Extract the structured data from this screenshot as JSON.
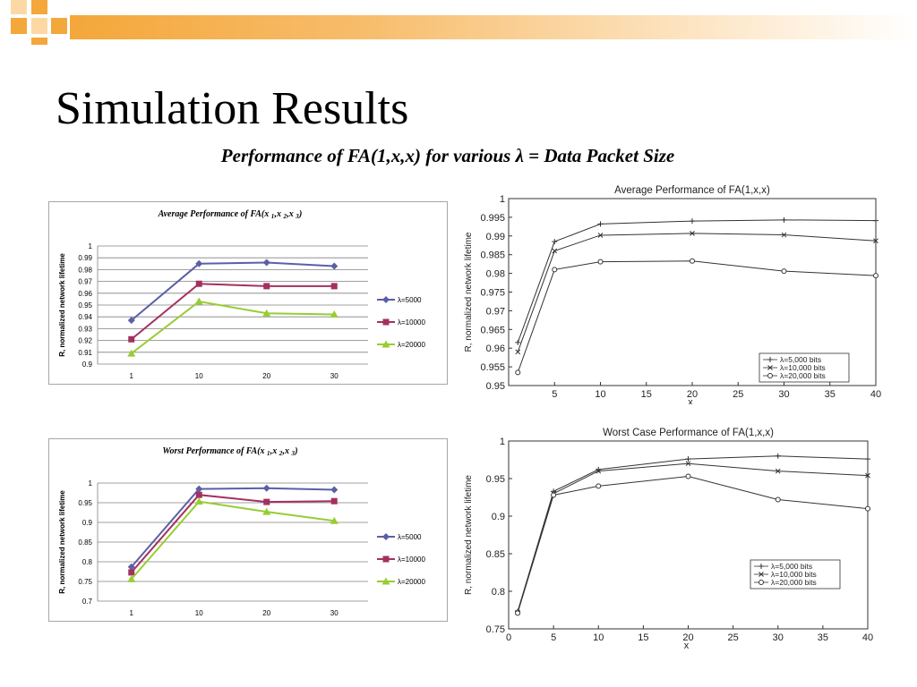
{
  "slide": {
    "title": "Simulation Results",
    "subtitle": "Performance of FA(1,x,x) for various λ = Data Packet Size"
  },
  "colors": {
    "header_orange": "#f4a73a",
    "header_light": "#fcd9a4",
    "series_blue": "#5b5fa6",
    "series_purple": "#a3315f",
    "series_green": "#99cc33",
    "paper_line": "#333333"
  },
  "chart_data": [
    {
      "id": "excel-average",
      "type": "line",
      "title": "Average Performance of FA(x 1,x 2,x 3)",
      "title_parts": {
        "pre": "Average Performance of FA(x ",
        "s1": "1",
        "mid1": ",x ",
        "s2": "2",
        "mid2": ",x ",
        "s3": "3",
        "post": ")"
      },
      "xlabel": "",
      "ylabel": "R, normalized network lifetime",
      "categories": [
        "1",
        "10",
        "20",
        "30"
      ],
      "y_ticks": [
        "1",
        "0.99",
        "0.98",
        "0.97",
        "0.96",
        "0.95",
        "0.94",
        "0.93",
        "0.92",
        "0.91",
        "0.9"
      ],
      "ylim": [
        0.9,
        1.0
      ],
      "grid": true,
      "legend_position": "right",
      "series": [
        {
          "name": "λ=5000",
          "marker": "diamond",
          "color": "#5b5fa6",
          "values": [
            0.937,
            0.985,
            0.986,
            0.983
          ]
        },
        {
          "name": "λ=10000",
          "marker": "square",
          "color": "#a3315f",
          "values": [
            0.921,
            0.968,
            0.966,
            0.966
          ]
        },
        {
          "name": "λ=20000",
          "marker": "triangle",
          "color": "#99cc33",
          "values": [
            0.909,
            0.953,
            0.943,
            0.942
          ]
        }
      ]
    },
    {
      "id": "excel-worst",
      "type": "line",
      "title": "Worst Performance of FA(x 1,x 2,x 3)",
      "title_parts": {
        "pre": "Worst Performance of FA(x ",
        "s1": "1",
        "mid1": ",x ",
        "s2": "2",
        "mid2": ",x ",
        "s3": "3",
        "post": ")"
      },
      "xlabel": "",
      "ylabel": "R, normalized network lifetime",
      "categories": [
        "1",
        "10",
        "20",
        "30"
      ],
      "y_ticks": [
        "1",
        "0.95",
        "0.9",
        "0.85",
        "0.8",
        "0.75",
        "0.7"
      ],
      "ylim": [
        0.7,
        1.0
      ],
      "grid": true,
      "legend_position": "right",
      "series": [
        {
          "name": "λ=5000",
          "marker": "diamond",
          "color": "#5b5fa6",
          "values": [
            0.787,
            0.985,
            0.987,
            0.983
          ]
        },
        {
          "name": "λ=10000",
          "marker": "square",
          "color": "#a3315f",
          "values": [
            0.773,
            0.97,
            0.952,
            0.954
          ]
        },
        {
          "name": "λ=20000",
          "marker": "triangle",
          "color": "#99cc33",
          "values": [
            0.756,
            0.953,
            0.927,
            0.904
          ]
        }
      ]
    },
    {
      "id": "paper-average",
      "type": "line",
      "title": "Average Performance of FA(1,x,x)",
      "xlabel": "x",
      "ylabel": "R, normalized network lifetime",
      "x_ticks": [
        "5",
        "10",
        "15",
        "20",
        "25",
        "30",
        "35",
        "40"
      ],
      "y_ticks": [
        "1",
        "0.995",
        "0.99",
        "0.985",
        "0.98",
        "0.975",
        "0.97",
        "0.965",
        "0.96",
        "0.955",
        "0.95"
      ],
      "xlim": [
        0,
        40
      ],
      "ylim": [
        0.95,
        1.0
      ],
      "grid": false,
      "legend_position": "bottom-right",
      "series": [
        {
          "name": "λ=5,000 bits",
          "marker": "plus",
          "x": [
            1,
            5,
            10,
            20,
            30,
            40
          ],
          "values": [
            0.9615,
            0.9885,
            0.9932,
            0.994,
            0.9943,
            0.9941
          ]
        },
        {
          "name": "λ=10,000 bits",
          "marker": "cross",
          "x": [
            1,
            5,
            10,
            20,
            30,
            40
          ],
          "values": [
            0.959,
            0.986,
            0.9902,
            0.9907,
            0.9903,
            0.9887
          ]
        },
        {
          "name": "λ=20,000 bits",
          "marker": "circle",
          "x": [
            1,
            5,
            10,
            20,
            30,
            40
          ],
          "values": [
            0.9535,
            0.981,
            0.9831,
            0.9833,
            0.9806,
            0.9794
          ]
        }
      ]
    },
    {
      "id": "paper-worst",
      "type": "line",
      "title": "Worst Case Performance of FA(1,x,x)",
      "xlabel": "x",
      "ylabel": "R, normalized network lifetime",
      "x_ticks": [
        "0",
        "5",
        "10",
        "15",
        "20",
        "25",
        "30",
        "35",
        "40"
      ],
      "y_ticks": [
        "1",
        "0.95",
        "0.9",
        "0.85",
        "0.8",
        "0.75"
      ],
      "xlim": [
        0,
        40
      ],
      "ylim": [
        0.75,
        1.0
      ],
      "grid": false,
      "legend_position": "bottom-right",
      "series": [
        {
          "name": "λ=5,000 bits",
          "marker": "plus",
          "x": [
            1,
            5,
            10,
            20,
            30,
            40
          ],
          "values": [
            0.773,
            0.933,
            0.962,
            0.976,
            0.98,
            0.976
          ]
        },
        {
          "name": "λ=10,000 bits",
          "marker": "cross",
          "x": [
            1,
            5,
            10,
            20,
            30,
            40
          ],
          "values": [
            0.772,
            0.93,
            0.96,
            0.97,
            0.96,
            0.954
          ]
        },
        {
          "name": "λ=20,000 bits",
          "marker": "circle",
          "x": [
            1,
            5,
            10,
            20,
            30,
            40
          ],
          "values": [
            0.771,
            0.928,
            0.94,
            0.953,
            0.922,
            0.91
          ]
        }
      ]
    }
  ]
}
